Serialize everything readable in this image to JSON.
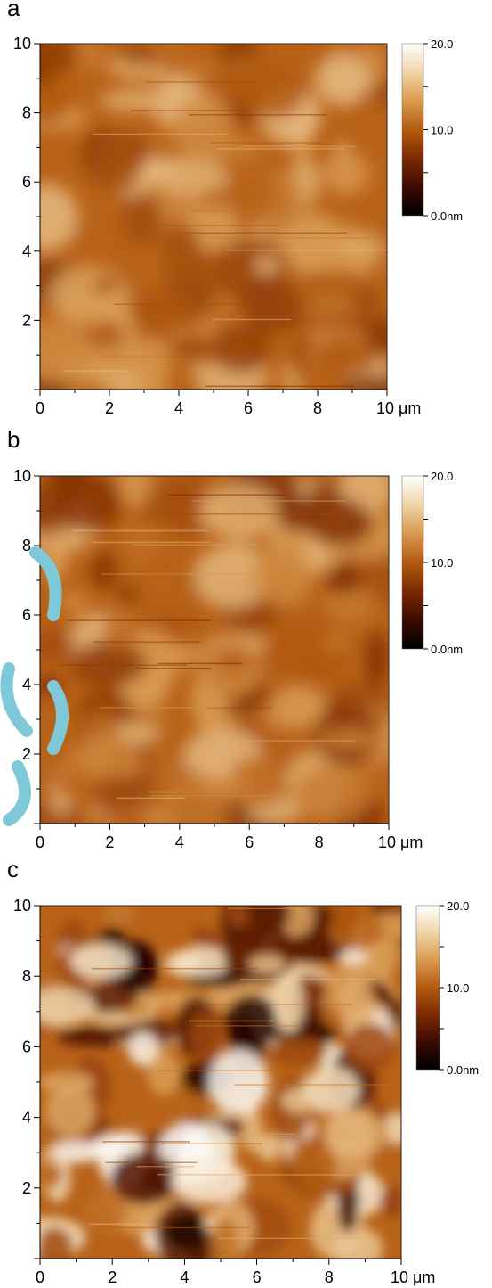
{
  "chart_data": [
    {
      "type": "heatmap",
      "panel_label": "a",
      "x_ticks": [
        "0",
        "2",
        "4",
        "6",
        "8",
        "10 μm"
      ],
      "y_ticks": [
        "10",
        "8",
        "6",
        "4",
        "2"
      ],
      "xlim": [
        0,
        10
      ],
      "ylim": [
        0,
        10
      ],
      "colorbar": {
        "ticks": [
          "20.0",
          "10.0",
          "0.0nm"
        ],
        "range": [
          0,
          20
        ]
      },
      "colormap": [
        "#000000",
        "#3b0a00",
        "#7a2a00",
        "#b35a10",
        "#d99a50",
        "#f0d4a8",
        "#ffffff"
      ],
      "contrast": "low",
      "seed": 11
    },
    {
      "type": "heatmap",
      "panel_label": "b",
      "x_ticks": [
        "0",
        "2",
        "4",
        "6",
        "8",
        "10 μm"
      ],
      "y_ticks": [
        "10",
        "8",
        "6",
        "4",
        "2"
      ],
      "xlim": [
        0,
        10
      ],
      "ylim": [
        0,
        10
      ],
      "colorbar": {
        "ticks": [
          "20.0",
          "10.0",
          "0.0nm"
        ],
        "range": [
          0,
          20
        ]
      },
      "colormap": [
        "#000000",
        "#3b0a00",
        "#7a2a00",
        "#b35a10",
        "#d99a50",
        "#f0d4a8",
        "#ffffff"
      ],
      "contrast": "low",
      "seed": 29
    },
    {
      "type": "heatmap",
      "panel_label": "c",
      "x_ticks": [
        "0",
        "2",
        "4",
        "6",
        "8",
        "10 μm"
      ],
      "y_ticks": [
        "10",
        "8",
        "6",
        "4",
        "2"
      ],
      "xlim": [
        0,
        10
      ],
      "ylim": [
        0,
        10
      ],
      "colorbar": {
        "ticks": [
          "20.0",
          "10.0",
          "0.0nm"
        ],
        "range": [
          0,
          20
        ]
      },
      "colormap": [
        "#000000",
        "#3b0a00",
        "#7a2a00",
        "#b35a10",
        "#d99a50",
        "#f0d4a8",
        "#ffffff"
      ],
      "contrast": "high",
      "seed": 53
    }
  ]
}
